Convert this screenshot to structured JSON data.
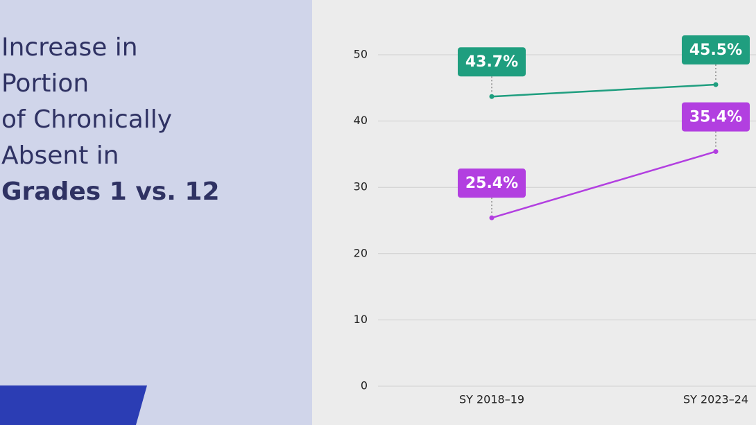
{
  "chart_data": {
    "type": "line",
    "title": [
      "Increase in",
      "Portion",
      "of Chronically",
      "Absent in",
      "Grades 1 vs. 12"
    ],
    "categories": [
      "SY 2018–19",
      "SY 2023–24"
    ],
    "series": [
      {
        "color": "#1f9e7f",
        "values": [
          43.7,
          45.5
        ],
        "value_labels": [
          "43.7%",
          "45.5%"
        ]
      },
      {
        "color": "#b23fe0",
        "values": [
          25.4,
          35.4
        ],
        "value_labels": [
          "25.4%",
          "35.4%"
        ]
      }
    ],
    "ylim": [
      0,
      55
    ],
    "yticks": [
      0,
      10,
      20,
      30,
      40,
      50
    ],
    "grid": true
  }
}
